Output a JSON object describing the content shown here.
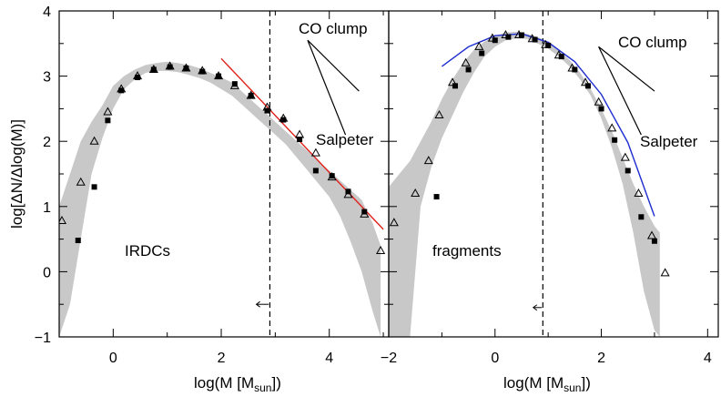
{
  "chart_data": [
    {
      "type": "scatter",
      "panel_label": "IRDCs",
      "xlabel": "log(M [M",
      "xlabel_sub": "sun",
      "xlabel_end": "])",
      "ylabel": "log[ΔN/Δlog(M)]",
      "xlim": [
        -1,
        5.1
      ],
      "ylim": [
        -1,
        4
      ],
      "x_ticks": [
        0,
        2,
        4
      ],
      "y_ticks": [
        -1,
        0,
        1,
        2,
        3,
        4
      ],
      "x_tick_labels": [
        "0",
        "2",
        "4"
      ],
      "y_tick_labels": [
        "−1",
        "0",
        "1",
        "2",
        "3",
        "4"
      ],
      "completeness_limit_x": 2.9,
      "annotations": {
        "co_clump": "CO clump",
        "salpeter": "Salpeter"
      },
      "shaded_band": {
        "x": [
          -1.0,
          -0.8,
          -0.6,
          -0.4,
          -0.2,
          0.0,
          0.2,
          0.4,
          0.6,
          0.8,
          1.0,
          1.2,
          1.4,
          1.6,
          1.8,
          2.0,
          2.2,
          2.4,
          2.6,
          2.8,
          3.0,
          3.2,
          3.4,
          3.6,
          3.8,
          4.0,
          4.2,
          4.4,
          4.6,
          4.8,
          4.95
        ],
        "upper": [
          1.0,
          1.5,
          2.0,
          2.3,
          2.55,
          2.85,
          3.0,
          3.1,
          3.17,
          3.2,
          3.22,
          3.2,
          3.17,
          3.12,
          3.05,
          2.98,
          2.9,
          2.75,
          2.6,
          2.45,
          2.3,
          2.15,
          2.0,
          1.85,
          1.7,
          1.55,
          1.4,
          1.25,
          1.1,
          0.75,
          0.4
        ],
        "lower": [
          -1.0,
          -0.5,
          0.5,
          1.5,
          2.05,
          2.5,
          2.8,
          2.95,
          3.05,
          3.08,
          3.08,
          3.06,
          3.02,
          2.97,
          2.9,
          2.8,
          2.7,
          2.55,
          2.4,
          2.25,
          2.1,
          1.95,
          1.75,
          1.55,
          1.35,
          1.15,
          0.85,
          0.45,
          0.0,
          -0.6,
          -1.0
        ]
      },
      "series": [
        {
          "marker": "open-triangle",
          "x": [
            -0.95,
            -0.6,
            -0.35,
            -0.1,
            0.15,
            0.45,
            0.75,
            1.05,
            1.35,
            1.65,
            1.95,
            2.25,
            2.55,
            2.85,
            3.15,
            3.45,
            3.75,
            4.05,
            4.35,
            4.65,
            4.95
          ],
          "y": [
            0.78,
            1.37,
            2.0,
            2.45,
            2.8,
            3.0,
            3.1,
            3.15,
            3.12,
            3.08,
            3.0,
            2.85,
            2.7,
            2.52,
            2.35,
            2.1,
            1.82,
            1.45,
            1.18,
            0.88,
            0.32
          ]
        },
        {
          "marker": "filled-square",
          "x": [
            -0.65,
            -0.35,
            -0.1,
            0.15,
            0.45,
            0.75,
            1.05,
            1.35,
            1.65,
            1.95,
            2.25,
            2.55,
            2.85,
            3.15,
            3.45,
            3.75,
            4.05,
            4.35,
            4.65
          ],
          "y": [
            0.48,
            1.3,
            2.32,
            2.78,
            2.98,
            3.1,
            3.14,
            3.12,
            3.07,
            3.0,
            2.88,
            2.7,
            2.47,
            2.33,
            2.03,
            1.55,
            1.47,
            1.23,
            0.92
          ]
        }
      ],
      "fit_line": {
        "color": "#e0201a",
        "x": [
          2.0,
          5.0
        ],
        "y": [
          3.27,
          0.65
        ]
      },
      "reference_lines": {
        "co_clump": {
          "x": [
            3.6,
            4.55
          ],
          "y": [
            3.55,
            2.77
          ]
        },
        "salpeter": {
          "x": [
            3.6,
            4.3
          ],
          "y": [
            3.55,
            2.1
          ]
        }
      },
      "arrow": {
        "x_from": 2.88,
        "x_to": 2.65,
        "y": -0.5
      }
    },
    {
      "type": "scatter",
      "panel_label": "fragments",
      "xlabel": "log(M [M",
      "xlabel_sub": "sun",
      "xlabel_end": "])",
      "xlim": [
        -2,
        4.2
      ],
      "ylim": [
        -1,
        4
      ],
      "x_ticks": [
        -2,
        0,
        2,
        4
      ],
      "x_tick_labels": [
        "−2",
        "0",
        "2",
        "4"
      ],
      "completeness_limit_x": 0.9,
      "annotations": {
        "co_clump": "CO clump",
        "salpeter": "Salpeter"
      },
      "shaded_band": {
        "x": [
          -2.0,
          -1.8,
          -1.6,
          -1.4,
          -1.2,
          -1.0,
          -0.8,
          -0.6,
          -0.4,
          -0.2,
          0.0,
          0.2,
          0.4,
          0.6,
          0.8,
          1.0,
          1.2,
          1.4,
          1.6,
          1.8,
          2.0,
          2.2,
          2.4,
          2.6,
          2.8,
          3.0,
          3.1
        ],
        "upper": [
          1.3,
          1.5,
          1.7,
          2.0,
          2.3,
          2.65,
          2.95,
          3.2,
          3.4,
          3.53,
          3.62,
          3.67,
          3.68,
          3.65,
          3.6,
          3.52,
          3.4,
          3.25,
          3.05,
          2.8,
          2.5,
          2.15,
          1.75,
          1.35,
          1.0,
          0.7,
          0.6
        ],
        "lower": [
          -1.0,
          -1.0,
          -1.0,
          1.0,
          1.6,
          2.05,
          2.4,
          2.75,
          3.05,
          3.3,
          3.45,
          3.55,
          3.58,
          3.57,
          3.5,
          3.42,
          3.3,
          3.15,
          2.95,
          2.7,
          2.35,
          1.9,
          1.35,
          0.6,
          -0.3,
          -0.9,
          -1.0
        ]
      },
      "series": [
        {
          "marker": "open-triangle",
          "x": [
            -1.9,
            -1.5,
            -1.25,
            -1.05,
            -0.8,
            -0.55,
            -0.3,
            -0.05,
            0.2,
            0.45,
            0.7,
            0.95,
            1.2,
            1.45,
            1.7,
            1.95,
            2.2,
            2.45,
            2.7,
            2.95,
            3.2
          ],
          "y": [
            0.75,
            1.2,
            1.7,
            2.4,
            2.9,
            3.2,
            3.45,
            3.58,
            3.63,
            3.63,
            3.57,
            3.48,
            3.32,
            3.12,
            2.9,
            2.6,
            2.2,
            1.75,
            1.2,
            0.55,
            -0.02
          ]
        },
        {
          "marker": "filled-square",
          "x": [
            -1.1,
            -0.75,
            -0.5,
            -0.25,
            0.0,
            0.25,
            0.5,
            0.75,
            1.0,
            1.25,
            1.5,
            1.75,
            2.0,
            2.25,
            2.5,
            2.75,
            3.0
          ],
          "y": [
            1.15,
            2.85,
            3.1,
            3.35,
            3.55,
            3.6,
            3.63,
            3.56,
            3.47,
            3.3,
            3.1,
            2.85,
            2.5,
            2.02,
            1.55,
            0.84,
            0.47
          ]
        }
      ],
      "fit_line": {
        "color": "#1e2ed0",
        "x": [
          -1.0,
          -0.5,
          0.0,
          0.5,
          1.0,
          1.5,
          2.0,
          2.5,
          3.0
        ],
        "y": [
          3.15,
          3.45,
          3.62,
          3.65,
          3.52,
          3.22,
          2.72,
          1.98,
          0.85
        ]
      },
      "reference_lines": {
        "co_clump": {
          "x": [
            1.95,
            3.0
          ],
          "y": [
            3.45,
            2.77
          ]
        },
        "salpeter": {
          "x": [
            1.95,
            2.75
          ],
          "y": [
            3.45,
            2.1
          ]
        }
      },
      "arrow": {
        "x_from": 0.88,
        "x_to": 0.72,
        "y": -0.55
      }
    }
  ]
}
